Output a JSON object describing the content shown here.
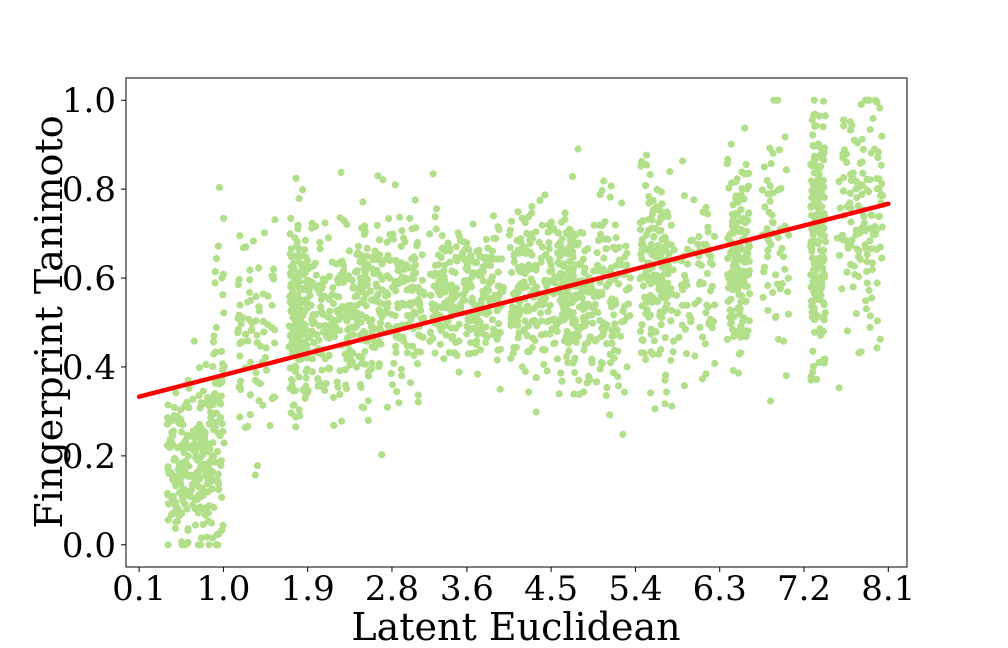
{
  "chart_data": {
    "type": "scatter",
    "title": "",
    "xlabel": "Latent Euclidean",
    "ylabel": "Fingerprint Tanimoto",
    "xlim": [
      -0.04,
      8.3
    ],
    "ylim": [
      -0.05,
      1.05
    ],
    "x_ticks": [
      0.1,
      1.0,
      1.9,
      2.8,
      3.6,
      4.5,
      5.4,
      6.3,
      7.2,
      8.1
    ],
    "x_tick_labels": [
      "0.1",
      "1.0",
      "1.9",
      "2.8",
      "3.6",
      "4.5",
      "5.4",
      "6.3",
      "7.2",
      "8.1"
    ],
    "y_ticks": [
      0.0,
      0.2,
      0.4,
      0.6,
      0.8,
      1.0
    ],
    "y_tick_labels": [
      "0.0",
      "0.2",
      "0.4",
      "0.6",
      "0.8",
      "1.0"
    ],
    "grid": false,
    "scatter_color": "#b2df8a",
    "point_clusters": [
      {
        "x_center": 0.65,
        "x_spread": 0.25,
        "y_mean": 0.19,
        "y_sd": 0.09,
        "count": 260
      },
      {
        "x_center": 0.95,
        "x_spread": 0.06,
        "y_mean": 0.3,
        "y_sd": 0.18,
        "count": 60
      },
      {
        "x_center": 1.35,
        "x_spread": 0.2,
        "y_mean": 0.48,
        "y_sd": 0.12,
        "count": 80
      },
      {
        "x_center": 1.8,
        "x_spread": 0.1,
        "y_mean": 0.52,
        "y_sd": 0.11,
        "count": 180
      },
      {
        "x_center": 2.2,
        "x_spread": 0.3,
        "y_mean": 0.52,
        "y_sd": 0.1,
        "count": 200
      },
      {
        "x_center": 2.8,
        "x_spread": 0.35,
        "y_mean": 0.55,
        "y_sd": 0.09,
        "count": 230
      },
      {
        "x_center": 3.6,
        "x_spread": 0.4,
        "y_mean": 0.56,
        "y_sd": 0.08,
        "count": 260
      },
      {
        "x_center": 4.4,
        "x_spread": 0.35,
        "y_mean": 0.58,
        "y_sd": 0.09,
        "count": 260
      },
      {
        "x_center": 5.0,
        "x_spread": 0.35,
        "y_mean": 0.57,
        "y_sd": 0.1,
        "count": 220
      },
      {
        "x_center": 5.6,
        "x_spread": 0.15,
        "y_mean": 0.6,
        "y_sd": 0.11,
        "count": 160
      },
      {
        "x_center": 6.0,
        "x_spread": 0.25,
        "y_mean": 0.6,
        "y_sd": 0.1,
        "count": 90
      },
      {
        "x_center": 6.5,
        "x_spread": 0.12,
        "y_mean": 0.65,
        "y_sd": 0.12,
        "count": 160
      },
      {
        "x_center": 6.9,
        "x_spread": 0.15,
        "y_mean": 0.7,
        "y_sd": 0.13,
        "count": 60
      },
      {
        "x_center": 7.35,
        "x_spread": 0.08,
        "y_mean": 0.68,
        "y_sd": 0.15,
        "count": 190
      },
      {
        "x_center": 7.8,
        "x_spread": 0.25,
        "y_mean": 0.75,
        "y_sd": 0.15,
        "count": 140
      }
    ],
    "trend_line": {
      "color": "#ff0000",
      "x": [
        0.1,
        8.1
      ],
      "y": [
        0.333,
        0.767
      ]
    }
  }
}
